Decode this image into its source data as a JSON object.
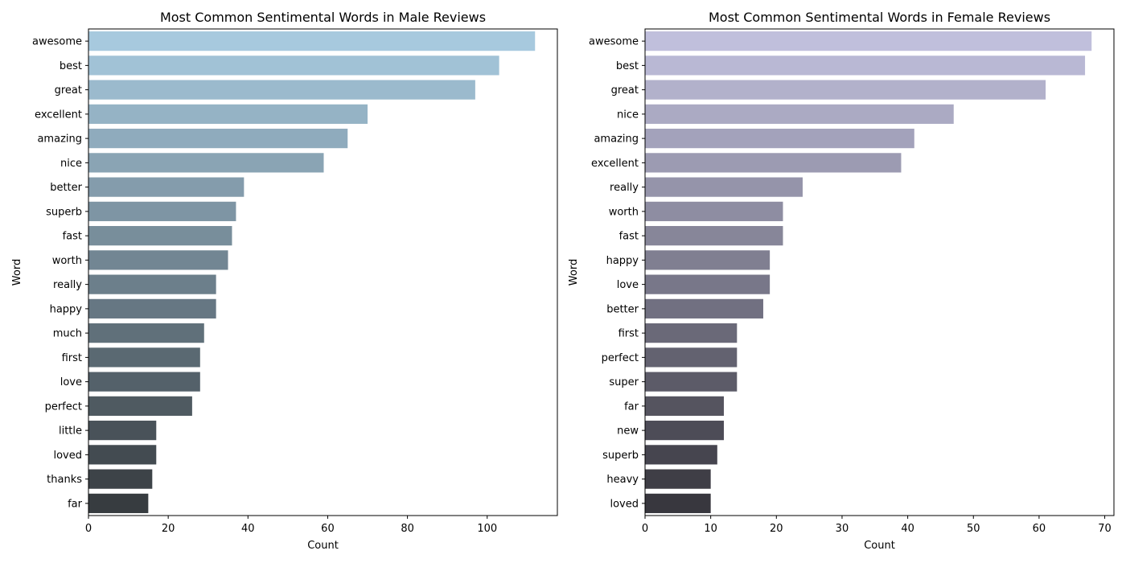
{
  "chart_data": [
    {
      "type": "bar",
      "orientation": "horizontal",
      "title": "Most Common Sentimental Words in Male Reviews",
      "xlabel": "Count",
      "ylabel": "Word",
      "xlim": [
        0,
        117.6
      ],
      "xticks": [
        0,
        20,
        40,
        60,
        80,
        100
      ],
      "grid": false,
      "palette": "Blues_d",
      "color_start": "#a7c9de",
      "color_end": "#373c40",
      "categories": [
        "awesome",
        "best",
        "great",
        "excellent",
        "amazing",
        "nice",
        "better",
        "superb",
        "fast",
        "worth",
        "really",
        "happy",
        "much",
        "first",
        "love",
        "perfect",
        "little",
        "loved",
        "thanks",
        "far"
      ],
      "values": [
        112,
        103,
        97,
        70,
        65,
        59,
        39,
        37,
        36,
        35,
        32,
        32,
        29,
        28,
        28,
        26,
        17,
        17,
        16,
        15
      ]
    },
    {
      "type": "bar",
      "orientation": "horizontal",
      "title": "Most Common Sentimental Words in Female Reviews",
      "xlabel": "Count",
      "ylabel": "Word",
      "xlim": [
        0,
        71.4
      ],
      "xticks": [
        0,
        10,
        20,
        30,
        40,
        50,
        60,
        70
      ],
      "grid": false,
      "palette": "Purples_d",
      "color_start": "#c0bfdc",
      "color_end": "#38373e",
      "categories": [
        "awesome",
        "best",
        "great",
        "nice",
        "amazing",
        "excellent",
        "really",
        "worth",
        "fast",
        "happy",
        "love",
        "better",
        "first",
        "perfect",
        "super",
        "far",
        "new",
        "superb",
        "heavy",
        "loved"
      ],
      "values": [
        68,
        67,
        61,
        47,
        41,
        39,
        24,
        21,
        21,
        19,
        19,
        18,
        14,
        14,
        14,
        12,
        12,
        11,
        10,
        10
      ]
    }
  ]
}
